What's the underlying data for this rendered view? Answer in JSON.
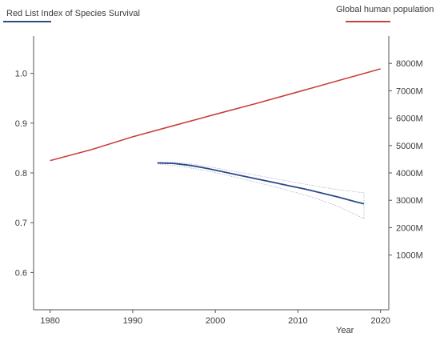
{
  "chart_data": {
    "type": "line",
    "title": "",
    "xlabel": "Year",
    "ylabel_left": "",
    "ylabel_right": "",
    "xlim": [
      1978,
      2021
    ],
    "ylim_left": [
      0.525,
      1.075
    ],
    "ylim_right": [
      -1000,
      9000
    ],
    "x_ticks": [
      1980,
      1990,
      2000,
      2010,
      2020
    ],
    "y_left_ticks": [
      "1.0",
      "0.9",
      "0.8",
      "0.7",
      "0.6"
    ],
    "y_left_tick_values": [
      1.0,
      0.9,
      0.8,
      0.7,
      0.6
    ],
    "y_right_ticks": [
      "8000M",
      "7000M",
      "6000M",
      "5000M",
      "4000M",
      "3000M",
      "2000M",
      "1000M"
    ],
    "y_right_tick_values": [
      8000,
      7000,
      6000,
      5000,
      4000,
      3000,
      2000,
      1000
    ],
    "grid": false,
    "legend_placement": "top",
    "series": [
      {
        "name": "Red List Index of Species Survival",
        "axis": "left",
        "color": "#2e4a87",
        "x": [
          1993,
          1995,
          1997,
          1999,
          2001,
          2003,
          2005,
          2007,
          2009,
          2011,
          2013,
          2015,
          2017,
          2018
        ],
        "y": [
          0.82,
          0.819,
          0.815,
          0.809,
          0.802,
          0.795,
          0.788,
          0.781,
          0.774,
          0.767,
          0.759,
          0.751,
          0.742,
          0.738
        ],
        "upper": [
          0.822,
          0.821,
          0.818,
          0.813,
          0.807,
          0.801,
          0.795,
          0.789,
          0.783,
          0.777,
          0.771,
          0.766,
          0.762,
          0.76
        ],
        "lower": [
          0.818,
          0.815,
          0.81,
          0.804,
          0.797,
          0.789,
          0.781,
          0.773,
          0.764,
          0.755,
          0.744,
          0.732,
          0.716,
          0.708
        ]
      },
      {
        "name": "Global human population",
        "axis": "right",
        "color": "#c8413c",
        "x": [
          1980,
          1985,
          1990,
          1995,
          2000,
          2005,
          2010,
          2015,
          2020
        ],
        "y": [
          4450,
          4850,
          5320,
          5730,
          6140,
          6540,
          6960,
          7380,
          7800
        ]
      }
    ]
  }
}
